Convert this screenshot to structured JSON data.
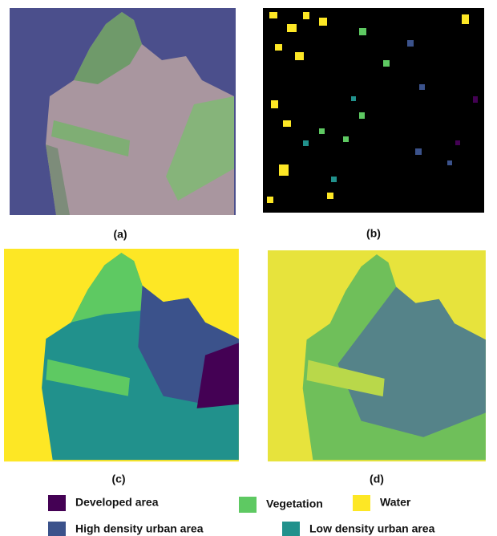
{
  "captions": [
    "(a)",
    "(b)",
    "(c)",
    "(d)"
  ],
  "legend": [
    {
      "name": "Developed area",
      "color": "#440154"
    },
    {
      "name": "Vegetation",
      "color": "#5ec962"
    },
    {
      "name": "Water",
      "color": "#fde725"
    },
    {
      "name": "High density urban area",
      "color": "#3b528b"
    },
    {
      "name": "Low density urban area",
      "color": "#21918c"
    }
  ]
}
